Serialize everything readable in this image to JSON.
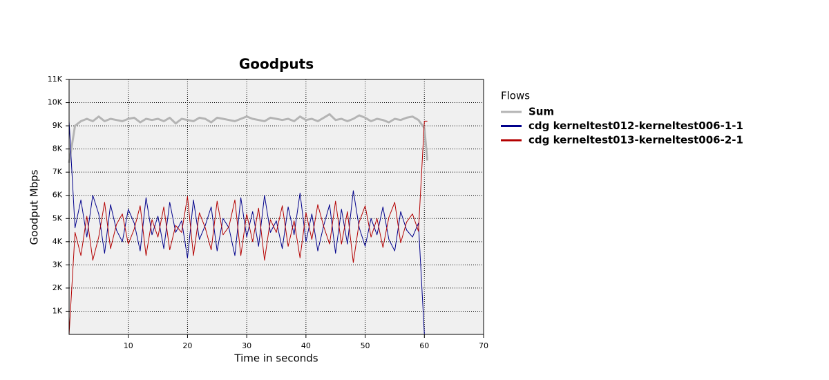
{
  "chart_data": {
    "type": "line",
    "title": "Goodputs",
    "x_label": "Time in seconds",
    "y_label": "Goodput Mbps",
    "legend_title": "Flows",
    "legend": "right",
    "grid": true,
    "x": [
      0,
      1,
      2,
      3,
      4,
      5,
      6,
      7,
      8,
      9,
      10,
      11,
      12,
      13,
      14,
      15,
      16,
      17,
      18,
      19,
      20,
      21,
      22,
      23,
      24,
      25,
      26,
      27,
      28,
      29,
      30,
      31,
      32,
      33,
      34,
      35,
      36,
      37,
      38,
      39,
      40,
      41,
      42,
      43,
      44,
      45,
      46,
      47,
      48,
      49,
      50,
      51,
      52,
      53,
      54,
      55,
      56,
      57,
      58,
      59,
      60,
      60.5
    ],
    "series": [
      {
        "name": "Sum",
        "color": "#b4b4b4",
        "width": 3,
        "values": [
          7400,
          9000,
          9200,
          9300,
          9200,
          9400,
          9200,
          9300,
          9250,
          9200,
          9300,
          9350,
          9150,
          9300,
          9250,
          9300,
          9200,
          9350,
          9100,
          9300,
          9250,
          9200,
          9350,
          9300,
          9150,
          9350,
          9300,
          9250,
          9200,
          9300,
          9400,
          9300,
          9250,
          9200,
          9350,
          9300,
          9250,
          9300,
          9200,
          9400,
          9250,
          9300,
          9200,
          9350,
          9500,
          9250,
          9300,
          9200,
          9300,
          9450,
          9350,
          9200,
          9300,
          9250,
          9150,
          9300,
          9250,
          9350,
          9400,
          9250,
          8900,
          7500
        ]
      },
      {
        "name": "cdg kerneltest012-kerneltest006-1-1",
        "color": "#00008b",
        "width": 1,
        "values": [
          9200,
          4600,
          5800,
          4200,
          6000,
          5200,
          3500,
          5600,
          4500,
          4000,
          5400,
          4800,
          3600,
          5900,
          4300,
          5100,
          3700,
          5700,
          4400,
          4900,
          3300,
          5800,
          4100,
          4700,
          5500,
          3600,
          5000,
          4600,
          3400,
          5900,
          4200,
          5300,
          3800,
          6000,
          4400,
          4900,
          3700,
          5500,
          4300,
          6100,
          4000,
          5200,
          3600,
          4700,
          5600,
          3500,
          5400,
          3900,
          6200,
          4600,
          3800,
          5000,
          4300,
          5500,
          4100,
          3600,
          5300,
          4500,
          4200,
          4800,
          0,
          0
        ]
      },
      {
        "name": "cdg kerneltest013-kerneltest006-2-1",
        "color": "#b40000",
        "width": 1,
        "values": [
          0,
          4400,
          3400,
          5100,
          3200,
          4200,
          5700,
          3700,
          4750,
          5200,
          3900,
          4550,
          5550,
          3400,
          4950,
          4200,
          5500,
          3650,
          4700,
          4400,
          5950,
          3400,
          5250,
          4600,
          3650,
          5750,
          4300,
          4650,
          5800,
          3400,
          5200,
          4000,
          5450,
          3200,
          4950,
          4400,
          5550,
          3800,
          4900,
          3300,
          5250,
          4100,
          5600,
          4650,
          3900,
          5750,
          3900,
          5300,
          3100,
          4850,
          5550,
          4200,
          5000,
          3750,
          5050,
          5700,
          3950,
          4850,
          5200,
          4450,
          9200,
          9200
        ]
      }
    ],
    "xlim": [
      0,
      70
    ],
    "xticks": [
      10,
      20,
      30,
      40,
      50,
      60,
      70
    ],
    "ylim": [
      0,
      11000
    ],
    "yticks": [
      {
        "value": 1000,
        "label": "1K"
      },
      {
        "value": 2000,
        "label": "2K"
      },
      {
        "value": 3000,
        "label": "3K"
      },
      {
        "value": 4000,
        "label": "4K"
      },
      {
        "value": 5000,
        "label": "5K"
      },
      {
        "value": 6000,
        "label": "6K"
      },
      {
        "value": 7000,
        "label": "7K"
      },
      {
        "value": 8000,
        "label": "8K"
      },
      {
        "value": 9000,
        "label": "9K"
      },
      {
        "value": 10000,
        "label": "10K"
      },
      {
        "value": 11000,
        "label": "11K"
      }
    ]
  }
}
